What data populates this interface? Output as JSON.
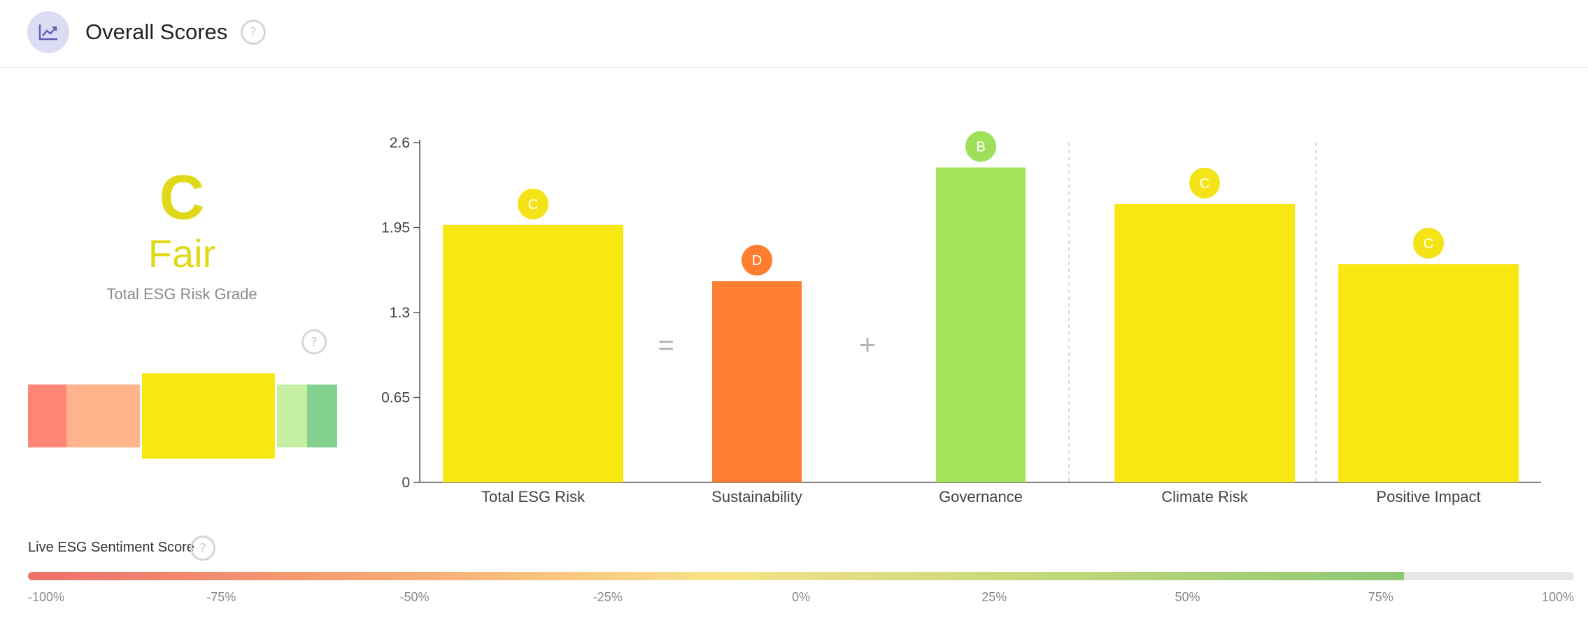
{
  "header": {
    "title": "Overall Scores",
    "help": "?"
  },
  "grade": {
    "letter": "C",
    "word": "Fair",
    "caption": "Total ESG Risk Grade",
    "color": "#e0d91a",
    "help": "?",
    "scale": [
      {
        "color": "#ff8577",
        "active": false
      },
      {
        "color": "#ffb48c",
        "active": false
      },
      {
        "color": "#f9e714",
        "active": true
      },
      {
        "color": "#c4eea2",
        "active": false
      },
      {
        "color": "#84d18f",
        "active": false
      }
    ]
  },
  "operators": {
    "equals": "=",
    "plus": "+"
  },
  "chart_data": {
    "type": "bar",
    "categories": [
      "Total ESG Risk",
      "Sustainability",
      "Governance",
      "Climate Risk",
      "Positive Impact"
    ],
    "values": [
      1.97,
      1.54,
      2.41,
      2.13,
      1.67
    ],
    "grades": [
      "C",
      "D",
      "B",
      "C",
      "C"
    ],
    "colors": [
      "#f9e714",
      "#ff7f32",
      "#a3e65c",
      "#f9e714",
      "#f9e714"
    ],
    "badge_colors": [
      "#f3e317",
      "#ff7d2e",
      "#9ee05a",
      "#f3e317",
      "#f3e317"
    ],
    "ylim": [
      0,
      2.6
    ],
    "yticks": [
      0,
      0.65,
      1.3,
      1.95,
      2.6
    ],
    "ytick_labels": [
      "0",
      "0.65",
      "1.3",
      "1.95",
      "2.6"
    ],
    "title": "",
    "xlabel": "",
    "ylabel": "",
    "grid": false
  },
  "sentiment": {
    "label": "Live ESG Sentiment Score",
    "help": "?",
    "value_percent": 78,
    "ticks": [
      "-100%",
      "-75%",
      "-50%",
      "-25%",
      "0%",
      "25%",
      "50%",
      "75%",
      "100%"
    ]
  }
}
